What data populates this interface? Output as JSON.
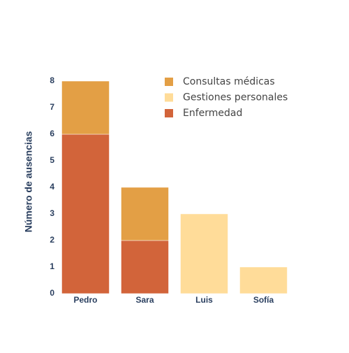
{
  "chart_data": {
    "type": "stacked_bar",
    "y_label": "Número de ausencias",
    "categories": [
      "Pedro",
      "Sara",
      "Luis",
      "Sofía"
    ],
    "series": [
      {
        "name": "Enfermedad",
        "color": "#d2643a",
        "values": [
          6,
          2,
          0,
          0
        ]
      },
      {
        "name": "Gestiones personales",
        "color": "#ffdc99",
        "values": [
          0,
          0,
          3,
          1
        ]
      },
      {
        "name": "Consultas médicas",
        "color": "#e39f45",
        "values": [
          2,
          2,
          0,
          0
        ]
      }
    ],
    "ylim": [
      0,
      8
    ],
    "yticks": [
      0,
      1,
      2,
      3,
      4,
      5,
      6,
      7,
      8
    ],
    "grid": false
  }
}
